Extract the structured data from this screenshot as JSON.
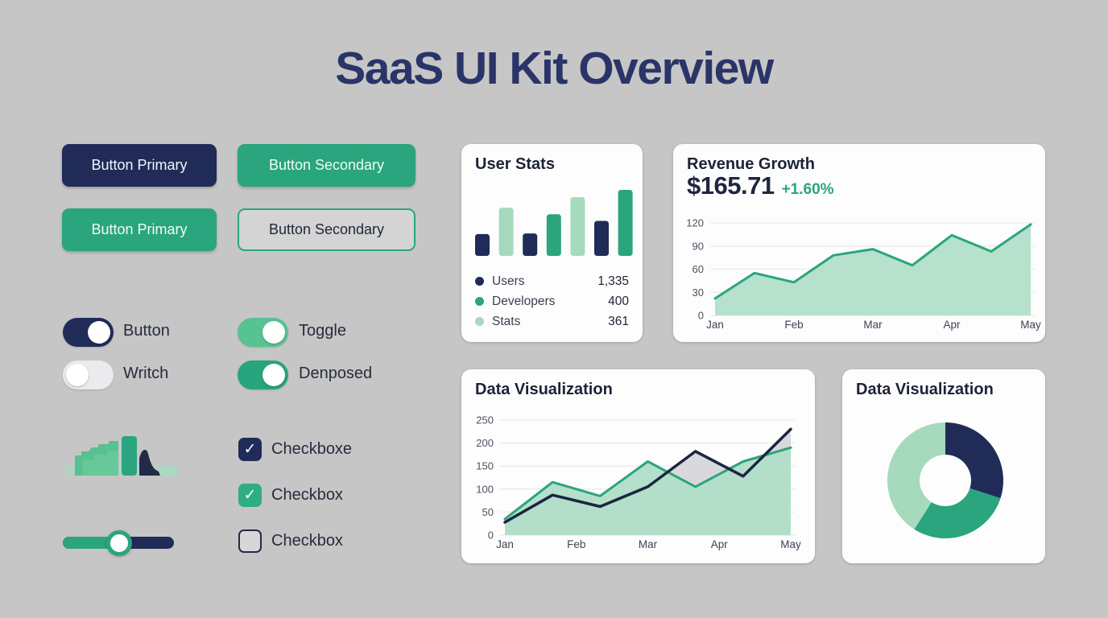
{
  "page": {
    "title": "SaaS UI Kit Overview"
  },
  "palette": {
    "navy": "#212b58",
    "navy_line": "#1b2540",
    "green": "#2aa57d",
    "mint": "#a5dabd",
    "mint_area": "#b2dfc9",
    "mint_toggle": "#57c392",
    "gray_fill": "#d8d8dd",
    "page_bg": "#c6c6c6"
  },
  "buttons": [
    {
      "label": "Button Primary"
    },
    {
      "label": "Button Secondary"
    },
    {
      "label": "Button Primary"
    },
    {
      "label": "Button Secondary"
    }
  ],
  "toggles": [
    {
      "label": "Button",
      "on": true
    },
    {
      "label": "Writch",
      "on": false
    },
    {
      "label": "Toggle",
      "on": true
    },
    {
      "label": "Denposed",
      "on": true
    }
  ],
  "checkboxes": [
    {
      "label": "Checkboxe",
      "checked": true
    },
    {
      "label": "Checkbox",
      "checked": true
    },
    {
      "label": "Checkbox",
      "checked": false
    }
  ],
  "slider": {
    "value_pct": 51
  },
  "cards": {
    "user_stats": {
      "title": "User Stats",
      "chart_data": {
        "type": "bar",
        "values": [
          33,
          73,
          34,
          63,
          89,
          53,
          100
        ],
        "colors": [
          "navy",
          "mint",
          "navy",
          "green",
          "mint",
          "navy",
          "green"
        ]
      },
      "legend": [
        {
          "label": "Users",
          "value": "1,335",
          "color": "navy"
        },
        {
          "label": "Developers",
          "value": "400",
          "color": "green"
        },
        {
          "label": "Stats",
          "value": "361",
          "color": "mint"
        }
      ]
    },
    "revenue": {
      "title": "Revenue Growth",
      "value": "$165.71",
      "change": "+1.60%",
      "chart_data": {
        "type": "area",
        "x_labels": [
          "Jan",
          "Feb",
          "Mar",
          "Apr",
          "May"
        ],
        "values": [
          22,
          55,
          43,
          78,
          86,
          65,
          104,
          83,
          118
        ],
        "yticks": [
          0,
          30,
          60,
          90,
          120
        ],
        "ylim": [
          0,
          120
        ],
        "line_color": "green",
        "fill_color": "mint_area"
      }
    },
    "line_viz": {
      "title": "Data Visualization",
      "chart_data": {
        "type": "line-area",
        "x_labels": [
          "Jan",
          "Feb",
          "Mar",
          "Apr",
          "May"
        ],
        "yticks": [
          0,
          50,
          100,
          150,
          200,
          250
        ],
        "ylim": [
          0,
          250
        ],
        "series": [
          {
            "name": "Green series",
            "color": "green",
            "fill": "mint_area",
            "values": [
              35,
              115,
              85,
              160,
              105,
              160,
              190
            ]
          },
          {
            "name": "Navy series",
            "color": "navy_line",
            "fill": "gray_fill",
            "values": [
              28,
              87,
              62,
              105,
              182,
              128,
              230
            ]
          }
        ]
      }
    },
    "donut_viz": {
      "title": "Data Visualization",
      "chart_data": {
        "type": "pie",
        "values": [
          30,
          29,
          41
        ],
        "colors": [
          "navy",
          "green",
          "mint"
        ]
      }
    }
  }
}
